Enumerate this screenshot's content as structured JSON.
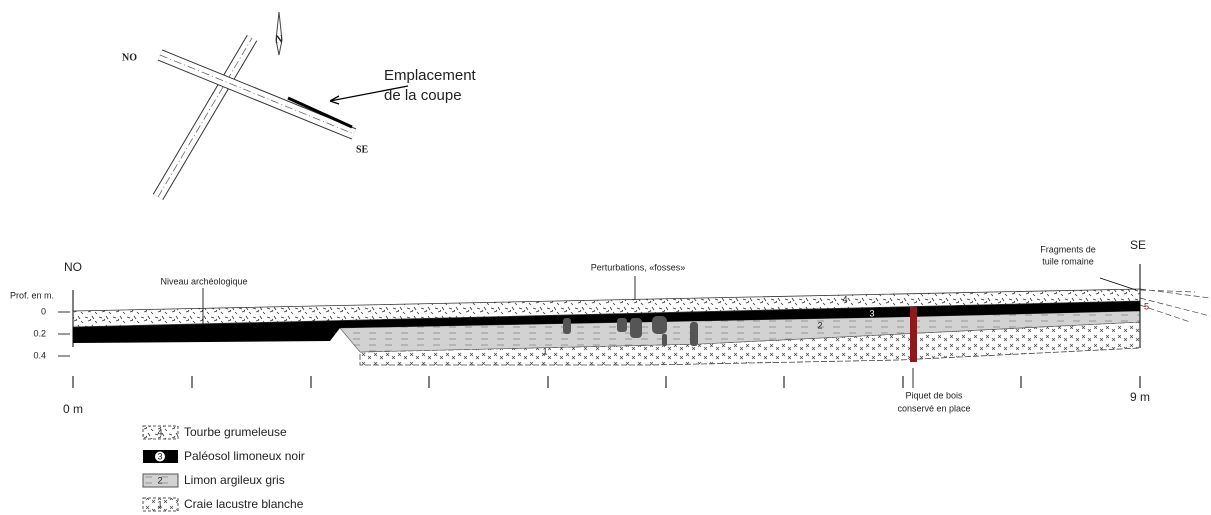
{
  "location_map": {
    "labels": {
      "nw": "NO",
      "se": "SE",
      "north": "N"
    },
    "callout": [
      "Emplacement",
      "de la coupe"
    ]
  },
  "section": {
    "ends": {
      "left": "NO",
      "right": "SE"
    },
    "depth_axis": {
      "title": "Prof. en m.",
      "ticks": [
        "0",
        "0.2",
        "0.4"
      ]
    },
    "distance": {
      "start": "0 m",
      "end": "9 m"
    },
    "annotations": {
      "archaeological_level": "Niveau archéologique",
      "disturbances": "Perturbations, «fosses»",
      "tile_fragments": [
        "Fragments de",
        "tuile romaine"
      ],
      "stake": [
        "Piquet de bois",
        "conservé en place"
      ]
    },
    "layer_numbers": [
      "4",
      "3",
      "2",
      "1",
      "5"
    ]
  },
  "legend": [
    {
      "number": "4",
      "label": "Tourbe grumeleuse"
    },
    {
      "number": "3",
      "label": "Paléosol limoneux noir"
    },
    {
      "number": "2",
      "label": "Limon argileux gris"
    },
    {
      "number": "1",
      "label": "Craie lacustre blanche"
    }
  ]
}
